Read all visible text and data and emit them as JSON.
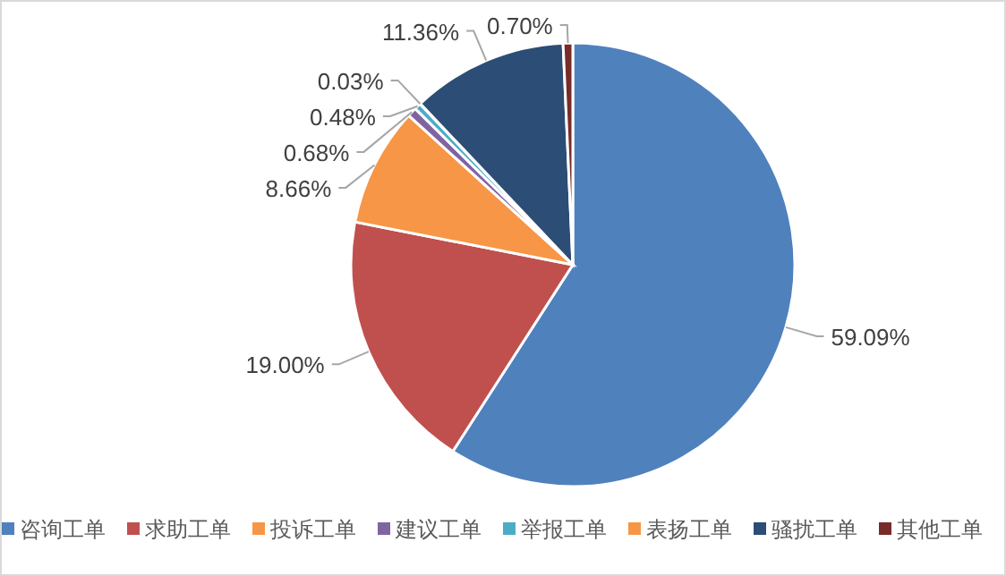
{
  "chart_data": {
    "type": "pie",
    "categories": [
      "咨询工单",
      "求助工单",
      "投诉工单",
      "建议工单",
      "举报工单",
      "表扬工单",
      "骚扰工单",
      "其他工单"
    ],
    "values": [
      59.09,
      19.0,
      8.66,
      0.68,
      0.48,
      0.03,
      11.36,
      0.7
    ],
    "value_labels": [
      "59.09%",
      "19.00%",
      "8.66%",
      "0.68%",
      "0.48%",
      "0.03%",
      "11.36%",
      "0.70%"
    ],
    "colors": [
      "#4f81bd",
      "#c0504d",
      "#f79646",
      "#8064a2",
      "#4bacc6",
      "#f79646",
      "#2c4d75",
      "#772c2a"
    ],
    "legend": "bottom"
  }
}
